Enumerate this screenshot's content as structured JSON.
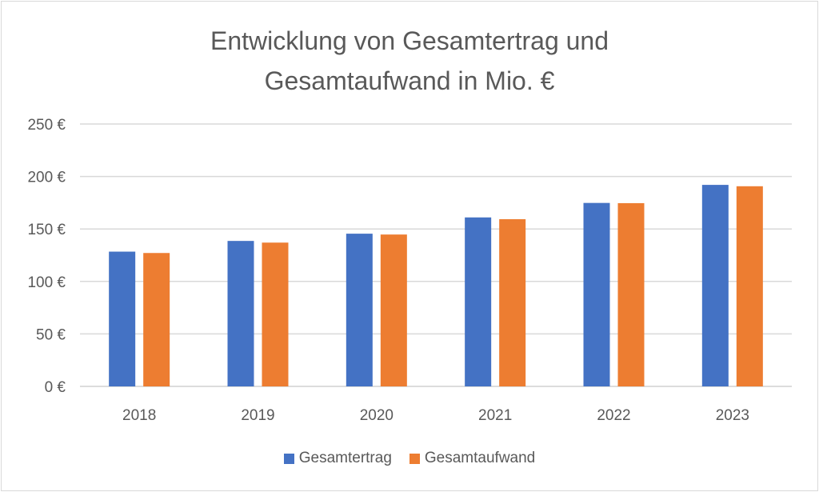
{
  "chart_data": {
    "type": "bar",
    "title": [
      "Entwicklung von Gesamtertrag und",
      "Gesamtaufwand in Mio. €"
    ],
    "categories": [
      "2018",
      "2019",
      "2020",
      "2021",
      "2022",
      "2023"
    ],
    "series": [
      {
        "name": "Gesamtertrag",
        "color": "#4472c4",
        "values": [
          128.4,
          138.6,
          145.5,
          161,
          174.8,
          192
        ]
      },
      {
        "name": "Gesamtaufwand",
        "color": "#ed7d31",
        "values": [
          127.1,
          137,
          144.7,
          159.3,
          174.6,
          190.7
        ]
      }
    ],
    "ylim": [
      0,
      250
    ],
    "yticks": [
      "0 €",
      "50 €",
      "100 €",
      "150 €",
      "200 €",
      "250 €"
    ],
    "ytick_values": [
      0,
      50,
      100,
      150,
      200,
      250
    ],
    "grid": true,
    "legend": "bottom",
    "xlabel": "",
    "ylabel": ""
  }
}
